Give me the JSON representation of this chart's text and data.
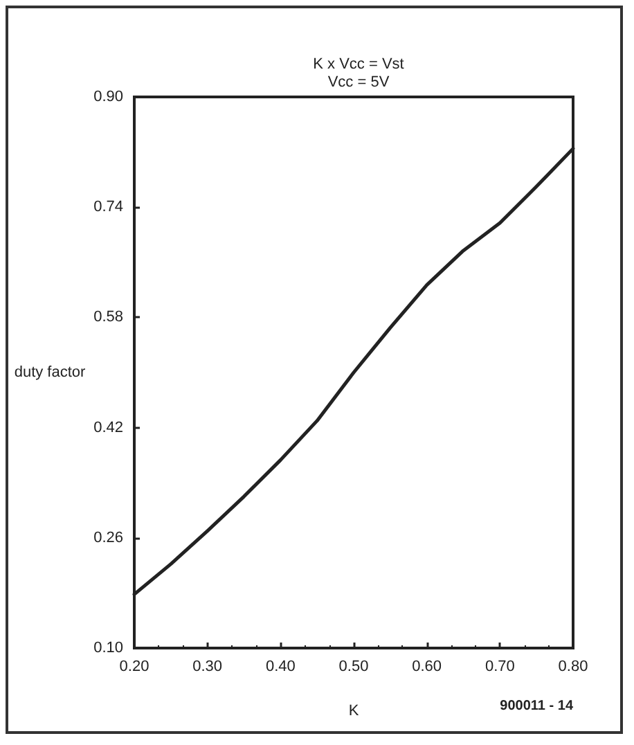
{
  "chart_data": {
    "type": "line",
    "title": "K x Vcc = Vst",
    "subtitle": "Vcc = 5V",
    "xlabel": "K",
    "ylabel": "duty factor",
    "annotations": [
      "900011 - 14"
    ],
    "x": [
      0.2,
      0.25,
      0.3,
      0.35,
      0.4,
      0.45,
      0.5,
      0.55,
      0.6,
      0.65,
      0.7,
      0.75,
      0.8
    ],
    "series": [
      {
        "color": "#222222",
        "values": [
          0.178,
          0.222,
          0.27,
          0.32,
          0.373,
          0.43,
          0.5,
          0.565,
          0.627,
          0.677,
          0.717,
          0.77,
          0.825
        ]
      }
    ],
    "xlim": [
      0.2,
      0.8
    ],
    "xticks": [
      {
        "value": 0.2,
        "label": "0.20"
      },
      {
        "value": 0.3,
        "label": "0.30"
      },
      {
        "value": 0.4,
        "label": "0.40"
      },
      {
        "value": 0.5,
        "label": "0.50"
      },
      {
        "value": 0.6,
        "label": "0.60"
      },
      {
        "value": 0.7,
        "label": "0.70"
      },
      {
        "value": 0.8,
        "label": "0.80"
      }
    ],
    "ylim": [
      0.1,
      0.9
    ],
    "yticks": [
      {
        "value": 0.1,
        "label": "0.10"
      },
      {
        "value": 0.26,
        "label": "0.26"
      },
      {
        "value": 0.42,
        "label": "0.42"
      },
      {
        "value": 0.58,
        "label": "0.58"
      },
      {
        "value": 0.74,
        "label": "0.74"
      },
      {
        "value": 0.9,
        "label": "0.90"
      }
    ],
    "grid": false,
    "marker": "none",
    "line_style": "solid"
  }
}
